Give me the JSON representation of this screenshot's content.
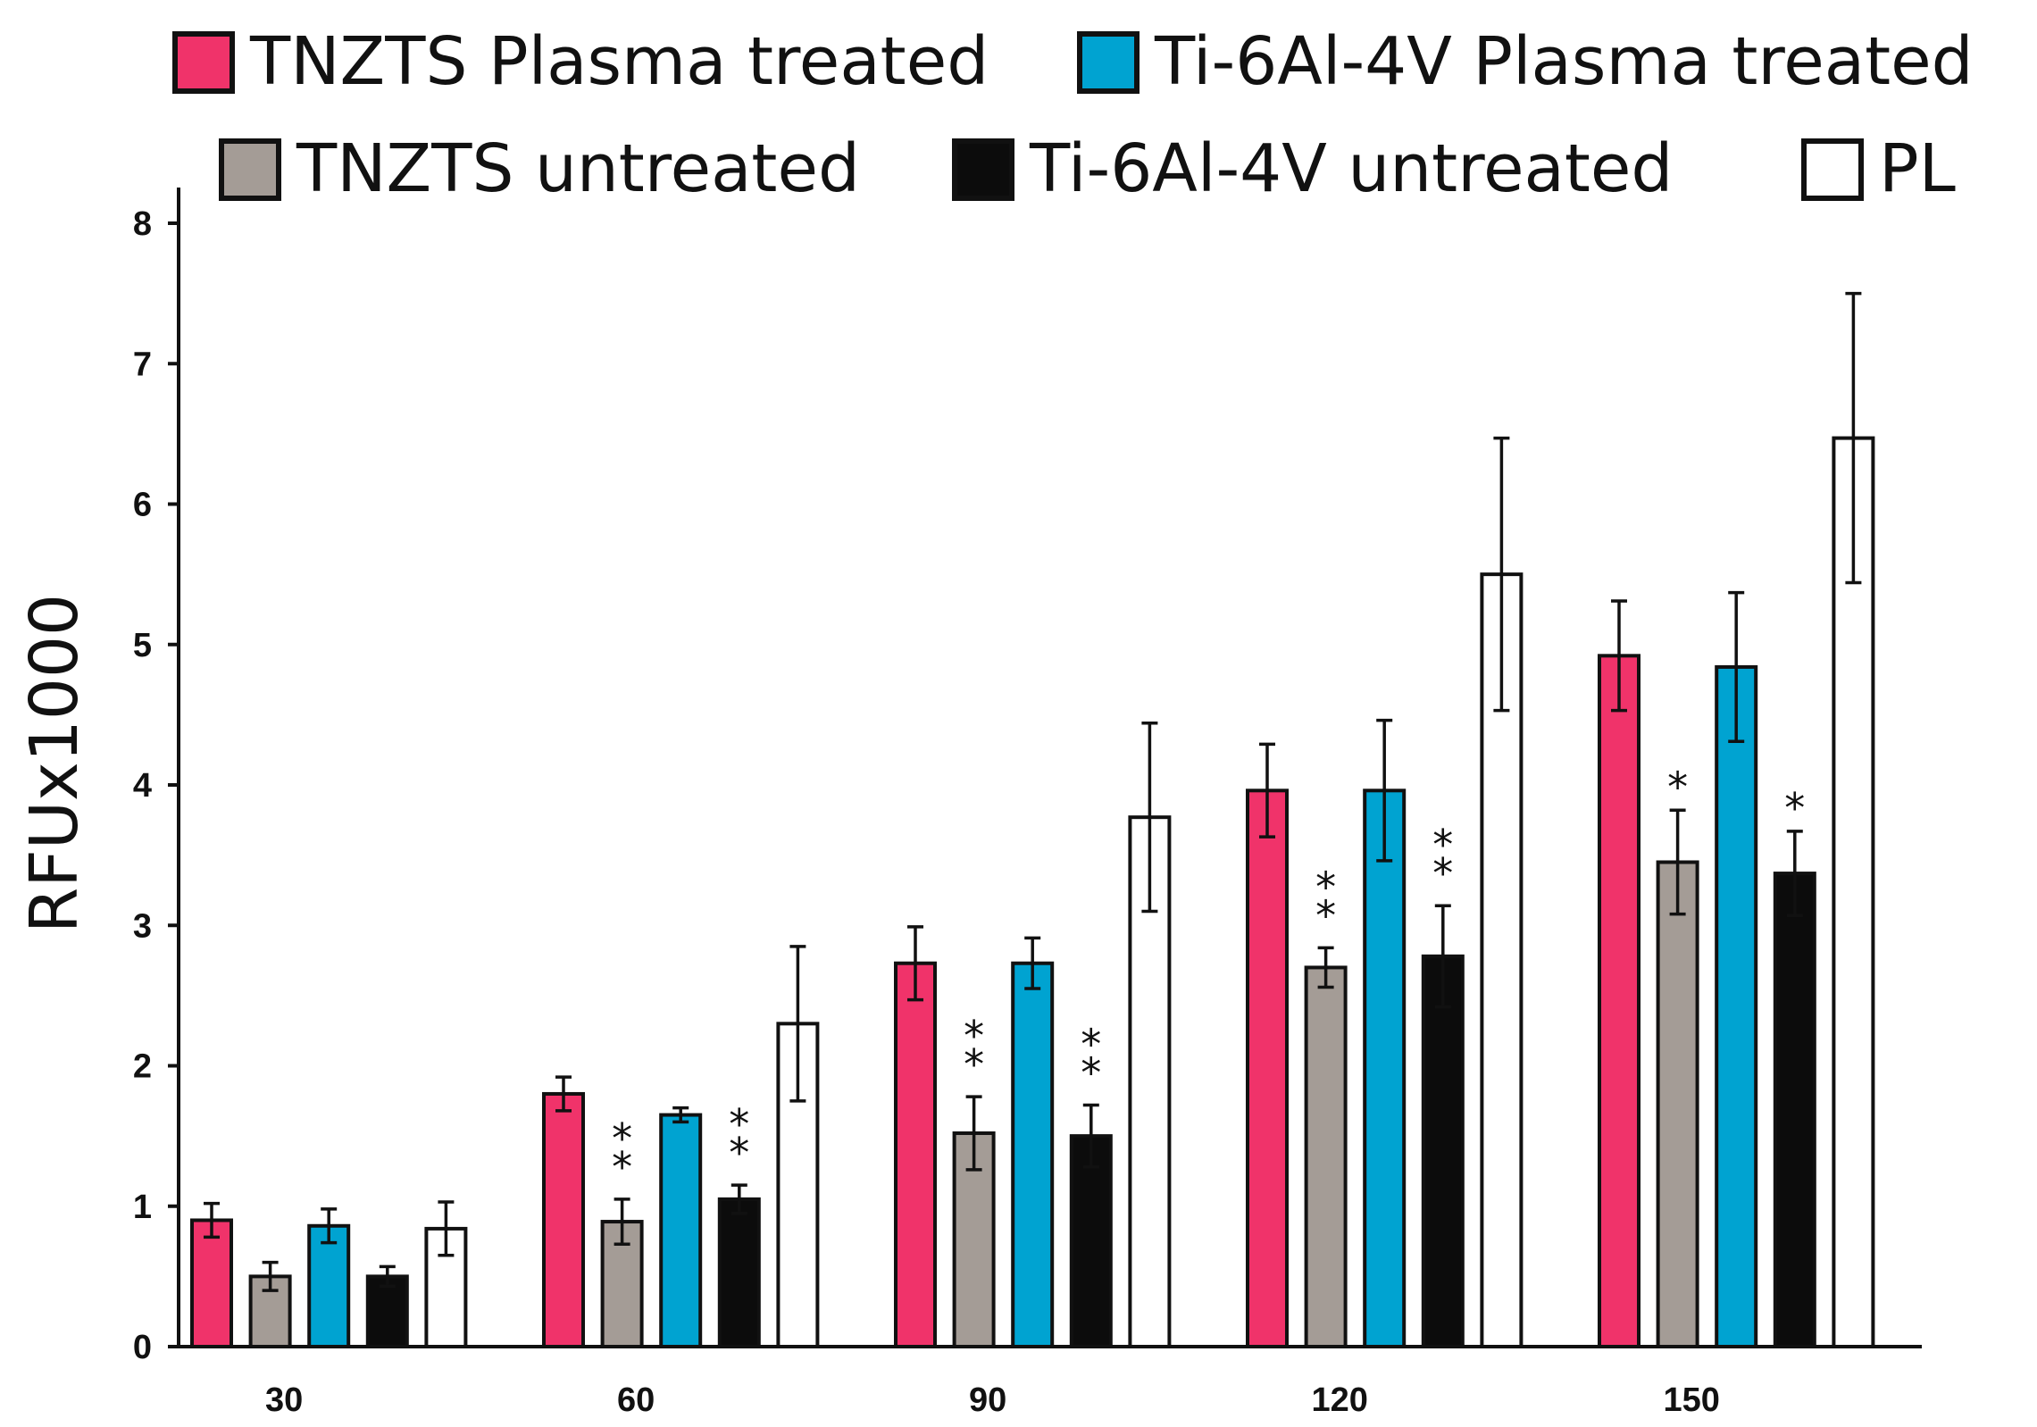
{
  "chart_data": {
    "type": "bar",
    "title": "",
    "xlabel": "",
    "ylabel": "RFUx1000",
    "ylim": [
      0,
      8
    ],
    "yticks": [
      "0",
      "1",
      "2",
      "3",
      "4",
      "5",
      "6",
      "7",
      "8"
    ],
    "categories": [
      "30",
      "60",
      "90",
      "120",
      "150"
    ],
    "grid": false,
    "legend_position": "top",
    "series": [
      {
        "name": "TNZTS Plasma treated",
        "color": "#f0336a",
        "values": [
          0.9,
          1.8,
          2.73,
          3.96,
          4.92
        ],
        "errors": [
          0.12,
          0.12,
          0.26,
          0.33,
          0.39
        ],
        "annotations": [
          "",
          "",
          "",
          "",
          ""
        ]
      },
      {
        "name": "TNZTS untreated",
        "color": "#a49c96",
        "values": [
          0.5,
          0.89,
          1.52,
          2.7,
          3.45
        ],
        "errors": [
          0.1,
          0.16,
          0.26,
          0.14,
          0.37
        ],
        "annotations": [
          "",
          "**",
          "**",
          "**",
          "*"
        ]
      },
      {
        "name": "Ti-6Al-4V Plasma treated",
        "color": "#00a3d1",
        "values": [
          0.86,
          1.65,
          2.73,
          3.96,
          4.84
        ],
        "errors": [
          0.12,
          0.05,
          0.18,
          0.5,
          0.53
        ],
        "annotations": [
          "",
          "",
          "",
          "",
          ""
        ]
      },
      {
        "name": "Ti-6Al-4V untreated",
        "color": "#0c0c0c",
        "values": [
          0.5,
          1.05,
          1.5,
          2.78,
          3.37
        ],
        "errors": [
          0.07,
          0.1,
          0.22,
          0.36,
          0.3
        ],
        "annotations": [
          "",
          "**",
          "**",
          "**",
          "*"
        ]
      },
      {
        "name": "PL",
        "color": "#ffffff",
        "values": [
          0.84,
          2.3,
          3.77,
          5.5,
          6.47
        ],
        "errors": [
          0.19,
          0.55,
          0.67,
          0.97,
          1.03
        ],
        "annotations": [
          "",
          "",
          "",
          "",
          ""
        ]
      }
    ],
    "legend_order": [
      0,
      2,
      1,
      3,
      4
    ]
  }
}
